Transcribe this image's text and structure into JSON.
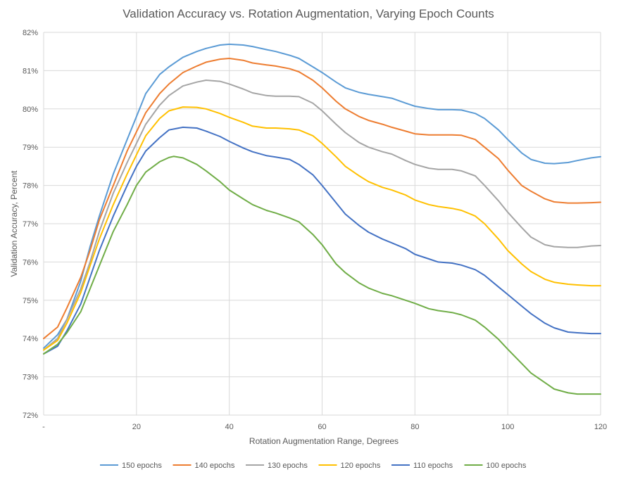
{
  "chart_data": {
    "type": "line",
    "title": "Validation Accuracy vs. Rotation Augmentation, Varying Epoch Counts",
    "xlabel": "Rotation Augmentation Range, Degrees",
    "ylabel": "Validation Accuracy, Percent",
    "xlim": [
      0,
      120
    ],
    "ylim": [
      72,
      82
    ],
    "x_ticks": [
      {
        "value": 0,
        "label": "-"
      },
      {
        "value": 20,
        "label": "20"
      },
      {
        "value": 40,
        "label": "40"
      },
      {
        "value": 60,
        "label": "60"
      },
      {
        "value": 80,
        "label": "80"
      },
      {
        "value": 100,
        "label": "100"
      },
      {
        "value": 120,
        "label": "120"
      }
    ],
    "y_ticks": [
      {
        "value": 72,
        "label": "72%"
      },
      {
        "value": 73,
        "label": "73%"
      },
      {
        "value": 74,
        "label": "74%"
      },
      {
        "value": 75,
        "label": "75%"
      },
      {
        "value": 76,
        "label": "76%"
      },
      {
        "value": 77,
        "label": "77%"
      },
      {
        "value": 78,
        "label": "78%"
      },
      {
        "value": 79,
        "label": "79%"
      },
      {
        "value": 80,
        "label": "80%"
      },
      {
        "value": 81,
        "label": "81%"
      },
      {
        "value": 82,
        "label": "82%"
      }
    ],
    "grid": true,
    "legend_position": "bottom",
    "series": [
      {
        "name": "150 epochs",
        "color": "#5B9BD5",
        "points": [
          [
            0,
            73.75
          ],
          [
            3,
            74.1
          ],
          [
            5,
            74.5
          ],
          [
            8,
            75.5
          ],
          [
            10,
            76.4
          ],
          [
            12,
            77.2
          ],
          [
            15,
            78.3
          ],
          [
            18,
            79.2
          ],
          [
            20,
            79.8
          ],
          [
            22,
            80.4
          ],
          [
            25,
            80.9
          ],
          [
            27,
            81.1
          ],
          [
            30,
            81.35
          ],
          [
            33,
            81.5
          ],
          [
            35,
            81.58
          ],
          [
            38,
            81.67
          ],
          [
            40,
            81.69
          ],
          [
            43,
            81.67
          ],
          [
            45,
            81.63
          ],
          [
            48,
            81.55
          ],
          [
            50,
            81.5
          ],
          [
            53,
            81.4
          ],
          [
            55,
            81.32
          ],
          [
            58,
            81.1
          ],
          [
            60,
            80.95
          ],
          [
            63,
            80.7
          ],
          [
            65,
            80.55
          ],
          [
            68,
            80.43
          ],
          [
            70,
            80.38
          ],
          [
            73,
            80.32
          ],
          [
            75,
            80.28
          ],
          [
            78,
            80.15
          ],
          [
            80,
            80.07
          ],
          [
            83,
            80.01
          ],
          [
            85,
            79.98
          ],
          [
            88,
            79.98
          ],
          [
            90,
            79.97
          ],
          [
            93,
            79.88
          ],
          [
            95,
            79.75
          ],
          [
            98,
            79.45
          ],
          [
            100,
            79.2
          ],
          [
            103,
            78.85
          ],
          [
            105,
            78.68
          ],
          [
            108,
            78.58
          ],
          [
            110,
            78.57
          ],
          [
            113,
            78.6
          ],
          [
            115,
            78.65
          ],
          [
            118,
            78.72
          ],
          [
            120,
            78.75
          ]
        ]
      },
      {
        "name": "140 epochs",
        "color": "#ED7D31",
        "points": [
          [
            0,
            74.0
          ],
          [
            3,
            74.3
          ],
          [
            5,
            74.8
          ],
          [
            8,
            75.6
          ],
          [
            10,
            76.3
          ],
          [
            12,
            77.1
          ],
          [
            15,
            78.0
          ],
          [
            18,
            78.9
          ],
          [
            20,
            79.4
          ],
          [
            22,
            79.9
          ],
          [
            25,
            80.4
          ],
          [
            27,
            80.65
          ],
          [
            30,
            80.95
          ],
          [
            33,
            81.12
          ],
          [
            35,
            81.22
          ],
          [
            38,
            81.3
          ],
          [
            40,
            81.32
          ],
          [
            43,
            81.27
          ],
          [
            45,
            81.2
          ],
          [
            48,
            81.15
          ],
          [
            50,
            81.12
          ],
          [
            53,
            81.05
          ],
          [
            55,
            80.97
          ],
          [
            58,
            80.75
          ],
          [
            60,
            80.55
          ],
          [
            63,
            80.2
          ],
          [
            65,
            80.0
          ],
          [
            68,
            79.8
          ],
          [
            70,
            79.7
          ],
          [
            73,
            79.6
          ],
          [
            75,
            79.52
          ],
          [
            78,
            79.42
          ],
          [
            80,
            79.35
          ],
          [
            83,
            79.32
          ],
          [
            85,
            79.32
          ],
          [
            88,
            79.32
          ],
          [
            90,
            79.31
          ],
          [
            93,
            79.2
          ],
          [
            95,
            79.0
          ],
          [
            98,
            78.7
          ],
          [
            100,
            78.4
          ],
          [
            103,
            78.0
          ],
          [
            105,
            77.85
          ],
          [
            108,
            77.65
          ],
          [
            110,
            77.57
          ],
          [
            113,
            77.54
          ],
          [
            115,
            77.54
          ],
          [
            118,
            77.55
          ],
          [
            120,
            77.56
          ]
        ]
      },
      {
        "name": "130 epochs",
        "color": "#A5A5A5",
        "points": [
          [
            0,
            73.7
          ],
          [
            3,
            74.0
          ],
          [
            5,
            74.5
          ],
          [
            8,
            75.3
          ],
          [
            10,
            76.0
          ],
          [
            12,
            76.8
          ],
          [
            15,
            77.8
          ],
          [
            18,
            78.6
          ],
          [
            20,
            79.1
          ],
          [
            22,
            79.6
          ],
          [
            25,
            80.1
          ],
          [
            27,
            80.35
          ],
          [
            30,
            80.6
          ],
          [
            33,
            80.7
          ],
          [
            35,
            80.75
          ],
          [
            38,
            80.72
          ],
          [
            40,
            80.65
          ],
          [
            43,
            80.52
          ],
          [
            45,
            80.42
          ],
          [
            48,
            80.35
          ],
          [
            50,
            80.33
          ],
          [
            53,
            80.33
          ],
          [
            55,
            80.32
          ],
          [
            58,
            80.15
          ],
          [
            60,
            79.95
          ],
          [
            63,
            79.6
          ],
          [
            65,
            79.38
          ],
          [
            68,
            79.12
          ],
          [
            70,
            79.0
          ],
          [
            73,
            78.88
          ],
          [
            75,
            78.82
          ],
          [
            78,
            78.65
          ],
          [
            80,
            78.55
          ],
          [
            83,
            78.45
          ],
          [
            85,
            78.42
          ],
          [
            88,
            78.42
          ],
          [
            90,
            78.38
          ],
          [
            93,
            78.25
          ],
          [
            95,
            78.0
          ],
          [
            98,
            77.6
          ],
          [
            100,
            77.3
          ],
          [
            103,
            76.9
          ],
          [
            105,
            76.65
          ],
          [
            108,
            76.45
          ],
          [
            110,
            76.4
          ],
          [
            113,
            76.38
          ],
          [
            115,
            76.38
          ],
          [
            118,
            76.42
          ],
          [
            120,
            76.43
          ]
        ]
      },
      {
        "name": "120 epochs",
        "color": "#FFC000",
        "points": [
          [
            0,
            73.7
          ],
          [
            3,
            73.95
          ],
          [
            5,
            74.4
          ],
          [
            8,
            75.2
          ],
          [
            10,
            75.9
          ],
          [
            12,
            76.6
          ],
          [
            15,
            77.5
          ],
          [
            18,
            78.3
          ],
          [
            20,
            78.8
          ],
          [
            22,
            79.3
          ],
          [
            25,
            79.75
          ],
          [
            27,
            79.95
          ],
          [
            30,
            80.05
          ],
          [
            33,
            80.04
          ],
          [
            35,
            80.0
          ],
          [
            38,
            79.88
          ],
          [
            40,
            79.78
          ],
          [
            43,
            79.65
          ],
          [
            45,
            79.55
          ],
          [
            48,
            79.5
          ],
          [
            50,
            79.5
          ],
          [
            53,
            79.48
          ],
          [
            55,
            79.45
          ],
          [
            58,
            79.3
          ],
          [
            60,
            79.1
          ],
          [
            63,
            78.75
          ],
          [
            65,
            78.5
          ],
          [
            68,
            78.25
          ],
          [
            70,
            78.1
          ],
          [
            73,
            77.95
          ],
          [
            75,
            77.88
          ],
          [
            78,
            77.75
          ],
          [
            80,
            77.62
          ],
          [
            83,
            77.5
          ],
          [
            85,
            77.45
          ],
          [
            88,
            77.4
          ],
          [
            90,
            77.35
          ],
          [
            93,
            77.2
          ],
          [
            95,
            77.0
          ],
          [
            98,
            76.6
          ],
          [
            100,
            76.3
          ],
          [
            103,
            75.95
          ],
          [
            105,
            75.75
          ],
          [
            108,
            75.55
          ],
          [
            110,
            75.47
          ],
          [
            113,
            75.42
          ],
          [
            115,
            75.4
          ],
          [
            118,
            75.38
          ],
          [
            120,
            75.38
          ]
        ]
      },
      {
        "name": "110 epochs",
        "color": "#4472C4",
        "points": [
          [
            0,
            73.6
          ],
          [
            3,
            73.8
          ],
          [
            5,
            74.2
          ],
          [
            8,
            74.9
          ],
          [
            10,
            75.6
          ],
          [
            12,
            76.3
          ],
          [
            15,
            77.2
          ],
          [
            18,
            78.0
          ],
          [
            20,
            78.5
          ],
          [
            22,
            78.9
          ],
          [
            25,
            79.25
          ],
          [
            27,
            79.45
          ],
          [
            30,
            79.52
          ],
          [
            33,
            79.5
          ],
          [
            35,
            79.42
          ],
          [
            38,
            79.28
          ],
          [
            40,
            79.15
          ],
          [
            43,
            78.98
          ],
          [
            45,
            78.88
          ],
          [
            48,
            78.78
          ],
          [
            50,
            78.74
          ],
          [
            53,
            78.68
          ],
          [
            55,
            78.55
          ],
          [
            58,
            78.28
          ],
          [
            60,
            78.0
          ],
          [
            63,
            77.55
          ],
          [
            65,
            77.25
          ],
          [
            68,
            76.95
          ],
          [
            70,
            76.78
          ],
          [
            73,
            76.6
          ],
          [
            75,
            76.5
          ],
          [
            78,
            76.35
          ],
          [
            80,
            76.2
          ],
          [
            83,
            76.08
          ],
          [
            85,
            76.0
          ],
          [
            88,
            75.97
          ],
          [
            90,
            75.92
          ],
          [
            93,
            75.8
          ],
          [
            95,
            75.65
          ],
          [
            98,
            75.35
          ],
          [
            100,
            75.15
          ],
          [
            103,
            74.85
          ],
          [
            105,
            74.65
          ],
          [
            108,
            74.4
          ],
          [
            110,
            74.28
          ],
          [
            113,
            74.17
          ],
          [
            115,
            74.15
          ],
          [
            118,
            74.13
          ],
          [
            120,
            74.13
          ]
        ]
      },
      {
        "name": "100 epochs",
        "color": "#70AD47",
        "points": [
          [
            0,
            73.6
          ],
          [
            3,
            73.85
          ],
          [
            5,
            74.15
          ],
          [
            8,
            74.7
          ],
          [
            10,
            75.3
          ],
          [
            12,
            75.9
          ],
          [
            15,
            76.8
          ],
          [
            18,
            77.5
          ],
          [
            20,
            78.0
          ],
          [
            22,
            78.35
          ],
          [
            25,
            78.62
          ],
          [
            27,
            78.73
          ],
          [
            28,
            78.76
          ],
          [
            30,
            78.72
          ],
          [
            33,
            78.55
          ],
          [
            35,
            78.38
          ],
          [
            38,
            78.1
          ],
          [
            40,
            77.88
          ],
          [
            43,
            77.65
          ],
          [
            45,
            77.5
          ],
          [
            48,
            77.35
          ],
          [
            50,
            77.28
          ],
          [
            53,
            77.15
          ],
          [
            55,
            77.05
          ],
          [
            58,
            76.72
          ],
          [
            60,
            76.45
          ],
          [
            63,
            75.95
          ],
          [
            65,
            75.72
          ],
          [
            68,
            75.45
          ],
          [
            70,
            75.32
          ],
          [
            73,
            75.18
          ],
          [
            75,
            75.12
          ],
          [
            78,
            75.0
          ],
          [
            80,
            74.92
          ],
          [
            83,
            74.78
          ],
          [
            85,
            74.73
          ],
          [
            88,
            74.68
          ],
          [
            90,
            74.62
          ],
          [
            93,
            74.48
          ],
          [
            95,
            74.3
          ],
          [
            98,
            73.98
          ],
          [
            100,
            73.72
          ],
          [
            103,
            73.35
          ],
          [
            105,
            73.1
          ],
          [
            108,
            72.85
          ],
          [
            110,
            72.68
          ],
          [
            113,
            72.58
          ],
          [
            115,
            72.55
          ],
          [
            118,
            72.55
          ],
          [
            120,
            72.55
          ]
        ]
      }
    ]
  }
}
